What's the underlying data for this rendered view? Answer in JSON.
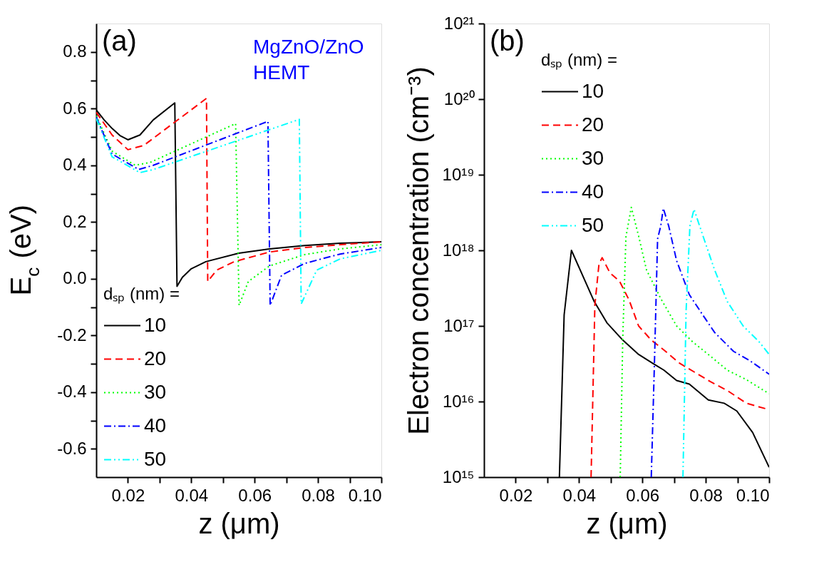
{
  "chart_data": [
    {
      "type": "line",
      "title": "(a)",
      "xlabel": "z (μm)",
      "ylabel": "E$_{c}$ (eV)",
      "legend_title": "dₛₚ (nm) =",
      "legend": "bottom left",
      "grid": false,
      "annotations": [
        "MgZnO/ZnO\nHEMT"
      ],
      "xlim": [
        0.01,
        0.1
      ],
      "xticks": [
        0.02,
        {
          "value": 0.03,
          "label": null
        },
        0.04,
        {
          "value": 0.05,
          "label": null
        },
        0.06,
        {
          "value": 0.07,
          "label": null
        },
        0.08,
        {
          "value": 0.09,
          "label": null
        },
        {
          "value": 0.1,
          "label": "0.10"
        }
      ],
      "ylim": [
        -0.7,
        0.9
      ],
      "yticks": [
        -0.6,
        {
          "value": -0.5,
          "label": null
        },
        -0.4,
        {
          "value": -0.3,
          "label": null
        },
        -0.2,
        {
          "value": -0.1,
          "label": null
        },
        {
          "value": 0,
          "label": "0.0"
        },
        {
          "value": 0.1,
          "label": null
        },
        0.2,
        {
          "value": 0.3,
          "label": null
        },
        0.4,
        {
          "value": 0.5,
          "label": null
        },
        0.6,
        {
          "value": 0.7,
          "label": null
        },
        0.8
      ],
      "series": [
        {
          "name": "10",
          "color": "#000000",
          "line_style": "solid",
          "x": [
            0.01,
            0.0125,
            0.015,
            0.0175,
            0.02,
            0.0238,
            0.028,
            0.0348,
            0.0355,
            0.0372,
            0.04,
            0.0446,
            0.055,
            0.0647,
            0.0758,
            0.087,
            0.1
          ],
          "values": [
            0.595,
            0.56,
            0.53,
            0.505,
            0.49,
            0.507,
            0.56,
            0.62,
            -0.027,
            0.005,
            0.035,
            0.06,
            0.09,
            0.105,
            0.117,
            0.125,
            0.13
          ]
        },
        {
          "name": "20",
          "color": "#ff0000",
          "line_style": "dashed",
          "x": [
            0.01,
            0.015,
            0.02,
            0.025,
            0.0448,
            0.0452,
            0.048,
            0.0535,
            0.0647,
            0.0758,
            0.087,
            0.1
          ],
          "values": [
            0.587,
            0.507,
            0.455,
            0.47,
            0.636,
            -0.01,
            0.03,
            0.06,
            0.094,
            0.11,
            0.12,
            0.13
          ]
        },
        {
          "name": "30",
          "color": "#00ff00",
          "line_style": "dotted",
          "x": [
            0.01,
            0.015,
            0.0223,
            0.027,
            0.054,
            0.0551,
            0.058,
            0.0647,
            0.0758,
            0.087,
            0.1
          ],
          "values": [
            0.575,
            0.45,
            0.4,
            0.41,
            0.547,
            -0.094,
            -0.01,
            0.045,
            0.085,
            0.105,
            0.12
          ]
        },
        {
          "name": "40",
          "color": "#0000ff",
          "line_style": "dashdot",
          "x": [
            0.01,
            0.015,
            0.0234,
            0.028,
            0.0642,
            0.0649,
            0.0685,
            0.0758,
            0.087,
            0.1
          ],
          "values": [
            0.57,
            0.44,
            0.385,
            0.4,
            0.555,
            -0.094,
            0.012,
            0.054,
            0.087,
            0.11
          ]
        },
        {
          "name": "50",
          "color": "#00ffff",
          "line_style": "dashdotdot",
          "x": [
            0.01,
            0.015,
            0.0238,
            0.028,
            0.0741,
            0.0747,
            0.0796,
            0.087,
            0.1
          ],
          "values": [
            0.565,
            0.43,
            0.374,
            0.385,
            0.562,
            -0.089,
            0.03,
            0.07,
            0.1
          ]
        }
      ]
    },
    {
      "type": "line",
      "title": "(b)",
      "xlabel": "z (μm)",
      "ylabel": "Electron concentration (cm⁻³)",
      "legend_title": "dₛₚ (nm) =",
      "legend": "top",
      "grid": false,
      "log": "y",
      "xlim": [
        0.01,
        0.1
      ],
      "xticks": [
        0.02,
        {
          "value": 0.03,
          "label": null
        },
        0.04,
        {
          "value": 0.05,
          "label": null
        },
        0.06,
        {
          "value": 0.07,
          "label": null
        },
        0.08,
        {
          "value": 0.09,
          "label": null
        },
        {
          "value": 0.1,
          "label": "0.10"
        }
      ],
      "ylim": [
        1000000000000000.0,
        1e+21
      ],
      "yticks": [
        {
          "value": 1000000000000000.0,
          "label": "10¹⁵"
        },
        {
          "value": 1e+16,
          "label": "10¹⁶"
        },
        {
          "value": 1e+17,
          "label": "10¹⁷"
        },
        {
          "value": 1e+18,
          "label": "10¹⁸"
        },
        {
          "value": 1e+19,
          "label": "10¹⁹"
        },
        {
          "value": 1e+20,
          "label": "10²⁰"
        },
        {
          "value": 1e+21,
          "label": "10²¹"
        }
      ],
      "series": [
        {
          "name": "10",
          "color": "#000000",
          "line_style": "solid",
          "x": [
            0.0338,
            0.0353,
            0.0376,
            0.0408,
            0.0448,
            0.0488,
            0.0538,
            0.0588,
            0.0638,
            0.0668,
            0.0708,
            0.0748,
            0.0808,
            0.0858,
            0.0898,
            0.0948,
            0.1
          ],
          "values": [
            1000000000000000.0,
            1.4e+17,
            1e+18,
            5e+17,
            2.1e+17,
            1.1e+17,
            6.5e+16,
            4.2e+16,
            3.1e+16,
            2.6e+16,
            1.9e+16,
            1.7e+16,
            1.05e+16,
            9500000000000000.0,
            7500000000000000.0,
            3900000000000000.0,
            1350000000000000.0
          ]
        },
        {
          "name": "20",
          "color": "#ff0000",
          "line_style": "dashed",
          "x": [
            0.0438,
            0.045,
            0.0463,
            0.0473,
            0.0498,
            0.0528,
            0.0558,
            0.0588,
            0.0628,
            0.0668,
            0.0718,
            0.0768,
            0.0818,
            0.0868,
            0.0928,
            0.1
          ],
          "values": [
            1000000000000000.0,
            1.9e+17,
            6.6e+17,
            8e+17,
            5e+17,
            3.9e+17,
            2.2e+17,
            1e+17,
            6.5e+16,
            4.8e+16,
            3.2e+16,
            2.4e+16,
            1.8e+16,
            1.4e+16,
            9500000000000000.0,
            7800000000000000.0
          ]
        },
        {
          "name": "30",
          "color": "#00ff00",
          "line_style": "dotted",
          "x": [
            0.053,
            0.0538,
            0.0548,
            0.0565,
            0.0588,
            0.0613,
            0.0658,
            0.0708,
            0.0758,
            0.0808,
            0.0868,
            0.0928,
            0.1
          ],
          "values": [
            1000000000000000.0,
            6.8e+16,
            1.5e+18,
            3.7e+18,
            1.55e+18,
            5.5e+17,
            2.3e+17,
            1e+17,
            6.2e+16,
            4.2e+16,
            2.6e+16,
            1.95e+16,
            1.27e+16
          ]
        },
        {
          "name": "40",
          "color": "#0000ff",
          "line_style": "dashdot",
          "x": [
            0.0628,
            0.0638,
            0.0648,
            0.0658,
            0.0666,
            0.0683,
            0.0708,
            0.0748,
            0.0788,
            0.0828,
            0.0888,
            0.0938,
            0.1
          ],
          "values": [
            1000000000000000.0,
            3.2e+16,
            1.42e+18,
            2.1e+18,
            3.6e+18,
            2.1e+18,
            7.3e+17,
            2.6e+17,
            1.45e+17,
            8.2e+16,
            4.6e+16,
            3.5e+16,
            2.3e+16
          ]
        },
        {
          "name": "50",
          "color": "#00ffff",
          "line_style": "dashdotdot",
          "x": [
            0.0728,
            0.0738,
            0.075,
            0.0763,
            0.0788,
            0.0828,
            0.0868,
            0.0918,
            0.0968,
            0.1
          ],
          "values": [
            1000000000000000.0,
            1.6e+17,
            2.1e+18,
            3.5e+18,
            1.7e+18,
            5.5e+17,
            2.1e+17,
            1e+17,
            6.2e+16,
            4.2e+16
          ]
        }
      ]
    }
  ]
}
